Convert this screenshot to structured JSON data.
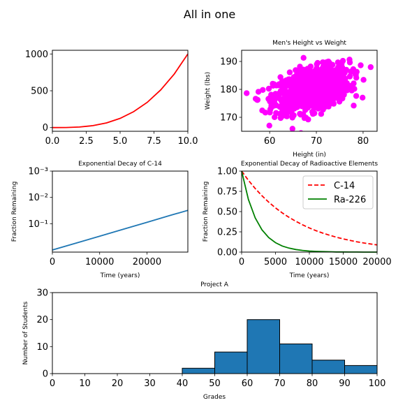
{
  "figure": {
    "title": "All in one"
  },
  "chart_data": [
    {
      "id": "cubic",
      "type": "line",
      "title": "",
      "xlabel": "",
      "ylabel": "",
      "xlim": [
        0,
        10
      ],
      "ylim": [
        -50,
        1050
      ],
      "xticks": [
        0,
        2.5,
        5,
        7.5,
        10
      ],
      "xtick_labels": [
        "0.0",
        "2.5",
        "5.0",
        "7.5",
        "10.0"
      ],
      "yticks": [
        0,
        500,
        1000
      ],
      "ytick_labels": [
        "0",
        "500",
        "1000"
      ],
      "series": [
        {
          "color": "#ff0000",
          "x": [
            0,
            1,
            2,
            3,
            4,
            5,
            6,
            7,
            8,
            9,
            10
          ],
          "y": [
            0,
            1,
            8,
            27,
            64,
            125,
            216,
            343,
            512,
            729,
            1000
          ]
        }
      ]
    },
    {
      "id": "scatter",
      "type": "scatter",
      "title": "Men's Height vs Weight",
      "xlabel": "Height (in)",
      "ylabel": "Weight (lbs)",
      "xlim": [
        54,
        83
      ],
      "ylim": [
        165,
        194
      ],
      "xticks": [
        60,
        70,
        80
      ],
      "xtick_labels": [
        "60",
        "70",
        "80"
      ],
      "yticks": [
        170,
        180,
        190
      ],
      "ytick_labels": [
        "170",
        "180",
        "190"
      ],
      "color": "#ff00ff",
      "point_count": 1000,
      "distribution": {
        "x_mean": 69,
        "x_sd": 4,
        "y_mean": 180,
        "y_sd": 4,
        "corr": 0.4
      }
    },
    {
      "id": "decay-log",
      "type": "line",
      "title": "Exponential Decay of C-14",
      "xlabel": "Time (years)",
      "ylabel": "Fraction Remaining",
      "xlim": [
        0,
        28650
      ],
      "ylim_log10": [
        -0.08,
        3
      ],
      "y_inverted": true,
      "xticks": [
        0,
        10000,
        20000
      ],
      "xtick_labels": [
        "0",
        "10000",
        "20000"
      ],
      "yticks_log10": [
        1,
        2,
        3
      ],
      "ytick_labels": [
        "10⁻¹",
        "10⁻²",
        "10⁻³"
      ],
      "series": [
        {
          "color": "#1f77b4",
          "x": [
            0,
            5000,
            10000,
            15000,
            20000,
            25000,
            28650
          ],
          "y": [
            1.0,
            0.546,
            0.298,
            0.163,
            0.089,
            0.048,
            0.031
          ]
        }
      ]
    },
    {
      "id": "decay-linear",
      "type": "line",
      "title": "Exponential Decay of Radioactive Elements",
      "xlabel": "Time (years)",
      "ylabel": "Fraction Remaining",
      "xlim": [
        0,
        20000
      ],
      "ylim": [
        0,
        1
      ],
      "xticks": [
        0,
        5000,
        10000,
        15000,
        20000
      ],
      "xtick_labels": [
        "0",
        "5000",
        "10000",
        "15000",
        "20000"
      ],
      "yticks": [
        0,
        0.25,
        0.5,
        0.75,
        1
      ],
      "ytick_labels": [
        "0.00",
        "0.25",
        "0.50",
        "0.75",
        "1.00"
      ],
      "legend": "top-right",
      "series": [
        {
          "name": "C-14",
          "color": "#ff0000",
          "style": "dashed",
          "x": [
            0,
            1000,
            2000,
            3000,
            4000,
            5000,
            6000,
            7000,
            8000,
            9000,
            10000,
            11000,
            12000,
            13000,
            14000,
            15000,
            16000,
            17000,
            18000,
            19000,
            20000
          ],
          "y": [
            1.0,
            0.886,
            0.785,
            0.696,
            0.616,
            0.546,
            0.484,
            0.429,
            0.38,
            0.337,
            0.298,
            0.264,
            0.234,
            0.208,
            0.184,
            0.163,
            0.145,
            0.128,
            0.113,
            0.101,
            0.089
          ]
        },
        {
          "name": "Ra-226",
          "color": "#008000",
          "style": "solid",
          "x": [
            0,
            1000,
            2000,
            3000,
            4000,
            5000,
            6000,
            7000,
            8000,
            9000,
            10000,
            11000,
            12000,
            13000,
            14000,
            15000,
            16000,
            17000,
            18000,
            19000,
            20000
          ],
          "y": [
            1.0,
            0.65,
            0.423,
            0.275,
            0.179,
            0.116,
            0.075,
            0.049,
            0.032,
            0.021,
            0.013,
            0.009,
            0.006,
            0.004,
            0.002,
            0.002,
            0.001,
            0.001,
            0.0,
            0.0,
            0.0
          ]
        }
      ]
    },
    {
      "id": "histogram",
      "type": "bar",
      "title": "Project A",
      "xlabel": "Grades",
      "ylabel": "Number of Students",
      "xlim": [
        0,
        100
      ],
      "ylim": [
        0,
        30
      ],
      "xticks": [
        0,
        10,
        20,
        30,
        40,
        50,
        60,
        70,
        80,
        90,
        100
      ],
      "xtick_labels": [
        "0",
        "10",
        "20",
        "30",
        "40",
        "50",
        "60",
        "70",
        "80",
        "90",
        "100"
      ],
      "yticks": [
        0,
        10,
        20,
        30
      ],
      "ytick_labels": [
        "0",
        "10",
        "20",
        "30"
      ],
      "color": "#1f77b4",
      "bins": [
        [
          0,
          10
        ],
        [
          10,
          20
        ],
        [
          20,
          30
        ],
        [
          30,
          40
        ],
        [
          40,
          50
        ],
        [
          50,
          60
        ],
        [
          60,
          70
        ],
        [
          70,
          80
        ],
        [
          80,
          90
        ],
        [
          90,
          100
        ]
      ],
      "values": [
        0,
        0,
        0,
        0,
        2,
        8,
        20,
        11,
        5,
        3
      ]
    }
  ]
}
